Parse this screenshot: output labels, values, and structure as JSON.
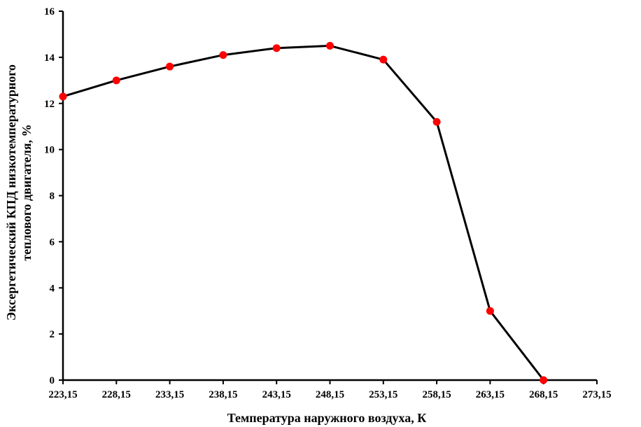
{
  "chart_data": {
    "type": "line",
    "title": "",
    "xlabel": "Температура наружного воздуха, К",
    "ylabel_lines": [
      "Эксергетический КПД низкотемпературного",
      "теплового двигателя, %"
    ],
    "x_tick_labels": [
      "223,15",
      "228,15",
      "233,15",
      "238,15",
      "243,15",
      "248,15",
      "253,15",
      "258,15",
      "263,15",
      "268,15",
      "273,15"
    ],
    "y_tick_labels": [
      "0",
      "2",
      "4",
      "6",
      "8",
      "10",
      "12",
      "14",
      "16"
    ],
    "xlim": [
      223.15,
      273.15
    ],
    "ylim": [
      0,
      16
    ],
    "x_ticks": [
      223.15,
      228.15,
      233.15,
      238.15,
      243.15,
      248.15,
      253.15,
      258.15,
      263.15,
      268.15,
      273.15
    ],
    "y_ticks": [
      0,
      2,
      4,
      6,
      8,
      10,
      12,
      14,
      16
    ],
    "grid": false,
    "line_color": "#000000",
    "marker_color": "#ff0000",
    "series": [
      {
        "x": [
          223.15,
          228.15,
          233.15,
          238.15,
          243.15,
          248.15,
          253.15,
          258.15,
          263.15,
          268.15
        ],
        "y": [
          12.3,
          13.0,
          13.6,
          14.1,
          14.4,
          14.5,
          13.9,
          11.2,
          3.0,
          0.0
        ]
      }
    ]
  }
}
